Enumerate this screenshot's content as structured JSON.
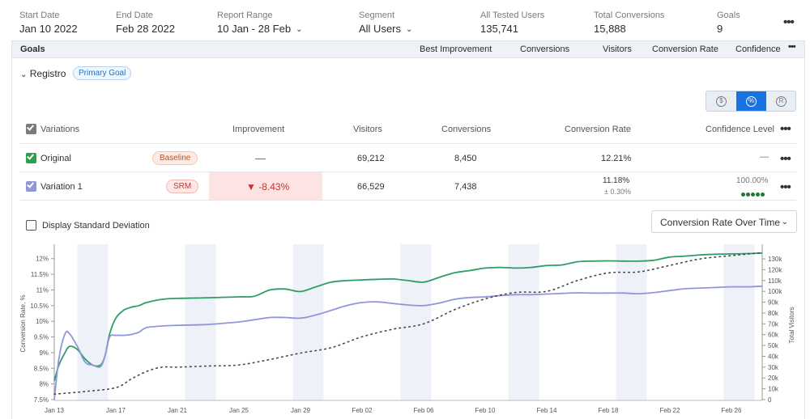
{
  "header": {
    "start_date": {
      "label": "Start Date",
      "value": "Jan 10 2022"
    },
    "end_date": {
      "label": "End Date",
      "value": "Feb 28 2022"
    },
    "report_range": {
      "label": "Report Range",
      "value": "10 Jan - 28 Feb"
    },
    "segment": {
      "label": "Segment",
      "value": "All Users"
    },
    "all_tested_users": {
      "label": "All Tested Users",
      "value": "135,741"
    },
    "total_conversions": {
      "label": "Total Conversions",
      "value": "15,888"
    },
    "goals": {
      "label": "Goals",
      "value": "9"
    },
    "more": "•••"
  },
  "goals_header": {
    "title": "Goals",
    "columns": [
      "Best Improvement",
      "Conversions",
      "Visitors",
      "Conversion Rate",
      "Confidence"
    ],
    "more": "•••"
  },
  "goal": {
    "name": "Registro",
    "badge": "Primary Goal"
  },
  "metric_toggle": [
    {
      "icon": "dollar-icon",
      "glyph": "$",
      "active": false
    },
    {
      "icon": "percent-icon",
      "glyph": "%",
      "active": true
    },
    {
      "icon": "revenue-icon",
      "glyph": "R",
      "active": false
    }
  ],
  "table": {
    "headers": [
      "Variations",
      "Improvement",
      "Visitors",
      "Conversions",
      "Conversion Rate",
      "Confidence Level"
    ],
    "more": "•••",
    "rows": [
      {
        "name": "Original",
        "tag": "Baseline",
        "improvement": "—",
        "visitors": "69,212",
        "conversions": "8,450",
        "rate": "12.21%",
        "rate_sub": "",
        "confidence": "—",
        "more": "•••"
      },
      {
        "name": "Variation 1",
        "tag": "SRM",
        "improvement": "▼ -8.43%",
        "visitors": "66,529",
        "conversions": "7,438",
        "rate": "11.18%",
        "rate_sub": "± 0.30%",
        "confidence": "100.00%",
        "confidence_dots": 5,
        "more": "•••"
      }
    ]
  },
  "options": {
    "std_dev_label": "Display Standard Deviation",
    "chart_select": "Conversion Rate Over Time"
  },
  "colors": {
    "original": "#2e9e66",
    "variation": "#8f97d8",
    "visitors": "#444444",
    "accent": "#1774e0",
    "negative": "#c0392b",
    "weekend_band": "#eef1f8"
  },
  "chart_data": {
    "type": "line",
    "ylabel": "Conversion Rate, %",
    "y2label": "Total Visitors",
    "ylim": [
      7.5,
      12.2
    ],
    "y2lim": [
      0,
      136000
    ],
    "yticks": [
      "7.5%",
      "8%",
      "8.5%",
      "9%",
      "9.5%",
      "10%",
      "10.5%",
      "11%",
      "11.5%",
      "12%"
    ],
    "y2ticks": [
      "0",
      "10k",
      "20k",
      "30k",
      "40k",
      "50k",
      "60k",
      "70k",
      "80k",
      "90k",
      "100k",
      "110k",
      "120k",
      "130k"
    ],
    "xlim": [
      0,
      46
    ],
    "xticks": [
      {
        "d": 0,
        "label": "Jan 13"
      },
      {
        "d": 4,
        "label": "Jan 17"
      },
      {
        "d": 8,
        "label": "Jan 21"
      },
      {
        "d": 12,
        "label": "Jan 25"
      },
      {
        "d": 16,
        "label": "Jan 29"
      },
      {
        "d": 20,
        "label": "Feb 02"
      },
      {
        "d": 24,
        "label": "Feb 06"
      },
      {
        "d": 28,
        "label": "Feb 10"
      },
      {
        "d": 32,
        "label": "Feb 14"
      },
      {
        "d": 36,
        "label": "Feb 18"
      },
      {
        "d": 40,
        "label": "Feb 22"
      },
      {
        "d": 44,
        "label": "Feb 26"
      }
    ],
    "weekend_bands": [
      [
        1.5,
        3.5
      ],
      [
        8.5,
        10.5
      ],
      [
        15.5,
        17.5
      ],
      [
        22.5,
        24.5
      ],
      [
        29.5,
        31.5
      ],
      [
        36.5,
        38.5
      ],
      [
        43.5,
        45.5
      ]
    ],
    "grid": true,
    "series": [
      {
        "name": "Original",
        "axis": "left",
        "style": "solid",
        "x": [
          0,
          0.3,
          0.7,
          1,
          1.5,
          2,
          2.5,
          3,
          3.3,
          3.6,
          4,
          4.5,
          5,
          5.5,
          6,
          7,
          8,
          10,
          12,
          13,
          14,
          15,
          16,
          17,
          18,
          19,
          20,
          21,
          22,
          23,
          24,
          25,
          26,
          27,
          28,
          29,
          30,
          31,
          32,
          33,
          34,
          35,
          36,
          37,
          38,
          39,
          40,
          41,
          42,
          43,
          44,
          45,
          46
        ],
        "y": [
          8.1,
          8.6,
          9.0,
          9.2,
          9.1,
          8.8,
          8.6,
          8.6,
          8.9,
          9.6,
          10.1,
          10.35,
          10.45,
          10.5,
          10.6,
          10.7,
          10.73,
          10.75,
          10.78,
          10.8,
          11.0,
          11.03,
          10.95,
          11.1,
          11.25,
          11.3,
          11.32,
          11.34,
          11.35,
          11.3,
          11.25,
          11.4,
          11.55,
          11.62,
          11.7,
          11.72,
          11.7,
          11.72,
          11.78,
          11.8,
          11.9,
          11.92,
          11.93,
          11.92,
          11.92,
          11.95,
          12.05,
          12.08,
          12.12,
          12.14,
          12.15,
          12.16,
          12.18
        ]
      },
      {
        "name": "Variation 1",
        "axis": "left",
        "style": "solid",
        "x": [
          0,
          0.3,
          0.7,
          1,
          1.5,
          2,
          2.5,
          3,
          3.3,
          3.6,
          4,
          4.5,
          5,
          5.5,
          6,
          7,
          8,
          10,
          12,
          13,
          14,
          15,
          16,
          17,
          18,
          19,
          20,
          21,
          22,
          23,
          24,
          25,
          26,
          27,
          28,
          29,
          30,
          31,
          32,
          33,
          34,
          35,
          36,
          37,
          38,
          39,
          40,
          41,
          42,
          43,
          44,
          45,
          46
        ],
        "y": [
          7.5,
          8.8,
          9.6,
          9.6,
          9.2,
          8.7,
          8.6,
          8.55,
          8.9,
          9.5,
          9.55,
          9.55,
          9.58,
          9.65,
          9.8,
          9.85,
          9.87,
          9.9,
          9.98,
          10.05,
          10.12,
          10.12,
          10.1,
          10.2,
          10.35,
          10.5,
          10.6,
          10.62,
          10.57,
          10.52,
          10.5,
          10.58,
          10.7,
          10.76,
          10.78,
          10.82,
          10.85,
          10.85,
          10.87,
          10.89,
          10.91,
          10.9,
          10.9,
          10.9,
          10.88,
          10.92,
          10.98,
          11.04,
          11.06,
          11.08,
          11.1,
          11.1,
          11.12
        ]
      },
      {
        "name": "Total Visitors",
        "axis": "right",
        "style": "dotted",
        "x": [
          0,
          2,
          4,
          5,
          6,
          7,
          8,
          10,
          12,
          14,
          16,
          18,
          20,
          22,
          24,
          26,
          28,
          30,
          32,
          34,
          36,
          38,
          40,
          42,
          44,
          46
        ],
        "y": [
          5000,
          7500,
          11000,
          19000,
          26000,
          30000,
          30000,
          31000,
          32000,
          37000,
          43000,
          48000,
          58000,
          65000,
          70000,
          83000,
          93000,
          99000,
          100000,
          110000,
          117000,
          118000,
          124000,
          130000,
          133000,
          135741
        ]
      }
    ]
  }
}
